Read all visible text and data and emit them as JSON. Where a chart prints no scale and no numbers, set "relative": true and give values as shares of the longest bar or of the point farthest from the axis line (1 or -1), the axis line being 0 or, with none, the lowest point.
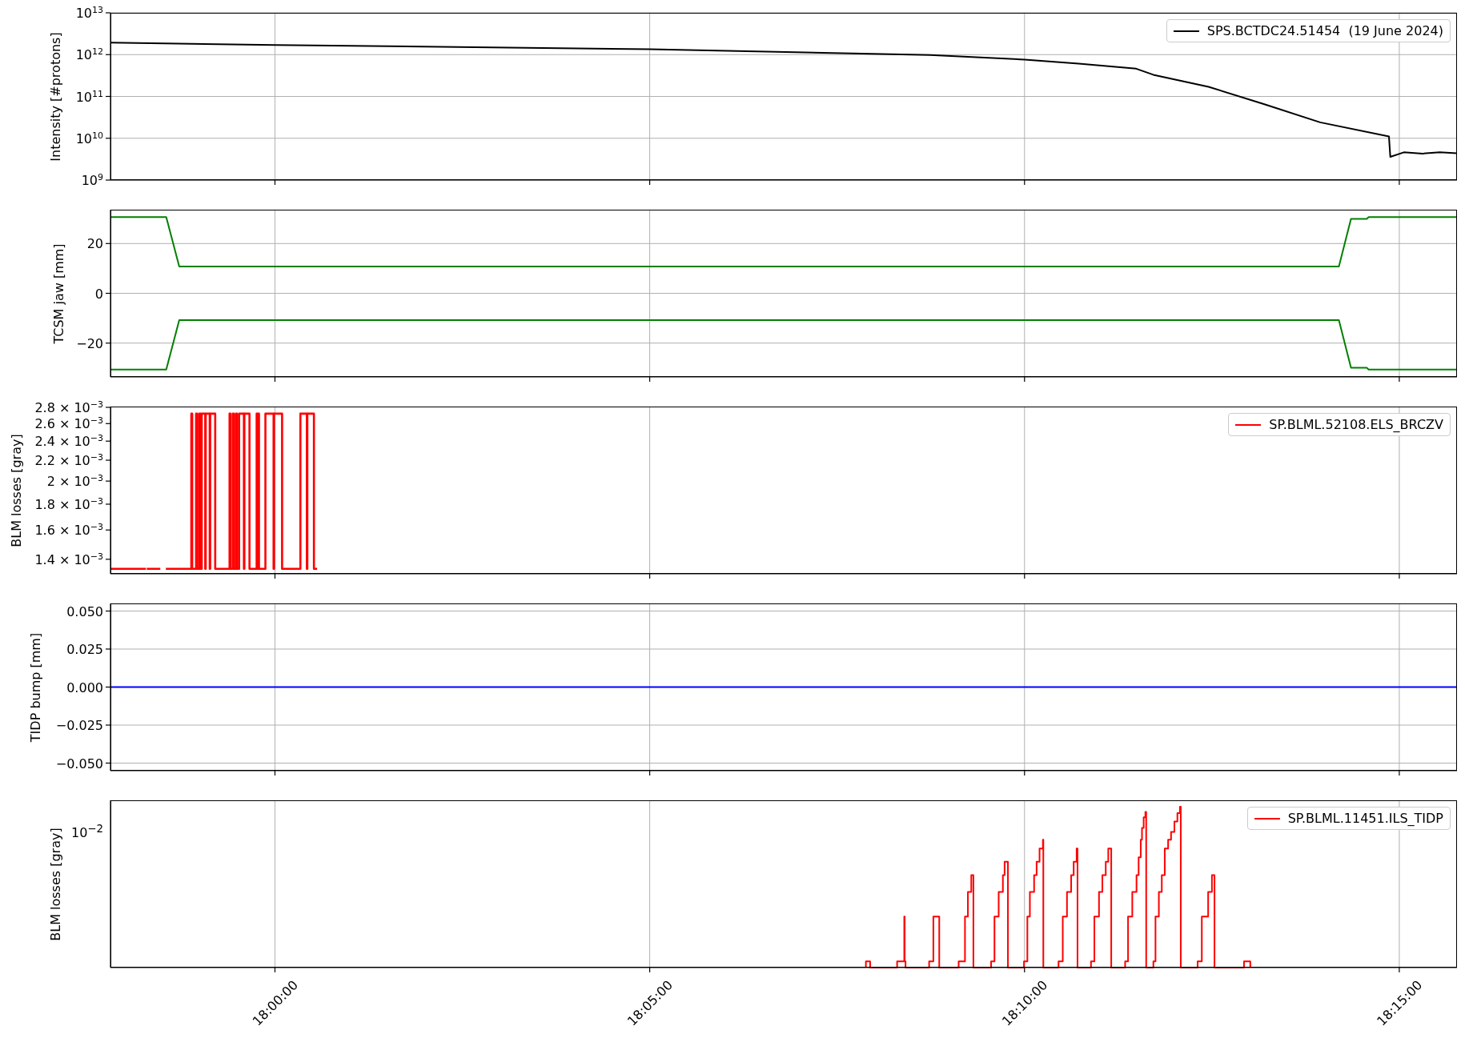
{
  "chart_data": [
    {
      "type": "line",
      "ylabel": "Intensity [#protons]",
      "log": "y",
      "grid": true,
      "legend": "top right",
      "tick_labels": "y",
      "xlim": [
        17.96343,
        18.26283
      ],
      "xticks": [
        {
          "value": 18,
          "label": null
        },
        {
          "value": 18.08333,
          "label": null
        },
        {
          "value": 18.16667,
          "label": null
        },
        {
          "value": 18.25,
          "label": null
        }
      ],
      "ylim": [
        1000000000.0,
        10000000000000.0
      ],
      "yticks": [
        {
          "value": 1000000000.0,
          "label": "10$^{9}$"
        },
        {
          "value": 10000000000.0,
          "label": "10$^{10}$"
        },
        {
          "value": 100000000000.0,
          "label": "10$^{11}$"
        },
        {
          "value": 1000000000000.0,
          "label": "10$^{12}$"
        },
        {
          "value": 10000000000000.0,
          "label": "10$^{13}$"
        }
      ],
      "series": [
        {
          "name": "SPS.BCTDC24.51454  (19 June 2024)",
          "color": "#000000",
          "x": [
            17.96343,
            18.0,
            18.0833,
            18.1457,
            18.1667,
            18.1787,
            18.1915,
            18.1953,
            18.2076,
            18.22,
            18.2324,
            18.2477,
            18.248,
            18.251,
            18.2552,
            18.259,
            18.2628
          ],
          "values": [
            1930000000000.0,
            1700000000000.0,
            1350000000000.0,
            980000000000.0,
            760000000000.0,
            610000000000.0,
            460000000000.0,
            330000000000.0,
            170000000000.0,
            65000000000.0,
            24000000000.0,
            11000000000.0,
            3600000000.0,
            4600000000.0,
            4300000000.0,
            4600000000.0,
            4400000000.0
          ]
        }
      ]
    },
    {
      "type": "line",
      "ylabel": "TCSM jaw [mm]",
      "grid": true,
      "tick_labels": "y",
      "xlim": [
        17.96343,
        18.26283
      ],
      "xticks": [
        {
          "value": 18,
          "label": null
        },
        {
          "value": 18.08333,
          "label": null
        },
        {
          "value": 18.16667,
          "label": null
        },
        {
          "value": 18.25,
          "label": null
        }
      ],
      "ylim": [
        -33.6,
        33.6
      ],
      "yticks": [
        {
          "value": -20,
          "label": "−20"
        },
        0,
        20
      ],
      "series": [
        {
          "color": "#008000",
          "x": [
            17.96343,
            17.97583,
            17.97872,
            18.23657,
            18.23926,
            18.24277,
            18.24318,
            18.26283
          ],
          "values": [
            30.6,
            30.6,
            10.8,
            10.8,
            29.9,
            29.9,
            30.6,
            30.6
          ]
        },
        {
          "color": "#008000",
          "x": [
            17.96343,
            17.97583,
            17.97872,
            18.23657,
            18.23926,
            18.24277,
            18.24318,
            18.26283
          ],
          "values": [
            -30.6,
            -30.6,
            -10.8,
            -10.8,
            -29.9,
            -29.9,
            -30.6,
            -30.6
          ]
        }
      ]
    },
    {
      "type": "step",
      "ylabel": "BLM losses [gray]",
      "log": "y",
      "grid": "x",
      "legend": "top right",
      "tick_labels": "y",
      "xlim": [
        17.96343,
        18.26283
      ],
      "xticks": [
        {
          "value": 18,
          "label": null
        },
        {
          "value": 18.08333,
          "label": null
        },
        {
          "value": 18.16667,
          "label": null
        },
        {
          "value": 18.25,
          "label": null
        }
      ],
      "ylim": [
        0.00131,
        0.00281
      ],
      "yticks": [
        {
          "value": 0.0014,
          "label": "1.4 × 10$^{−3}$"
        },
        {
          "value": 0.0016,
          "label": "1.6 × 10$^{−3}$"
        },
        {
          "value": 0.0018,
          "label": "1.8 × 10$^{−3}$"
        },
        {
          "value": 0.002,
          "label": "2 × 10$^{−3}$"
        },
        {
          "value": 0.0022,
          "label": "2.2 × 10$^{−3}$"
        },
        {
          "value": 0.0024,
          "label": "2.4 × 10$^{−3}$"
        },
        {
          "value": 0.0026,
          "label": "2.6 × 10$^{−3}$"
        },
        {
          "value": 0.0028,
          "label": "2.8 × 10$^{−3}$"
        }
      ],
      "series": [
        {
          "name": "SP.BLML.52108.ELS_BRCZV",
          "color": "#ff0000",
          "x": [
            17.96353,
            17.97132,
            17.9714,
            17.9715,
            17.97451,
            17.975,
            17.97575,
            17.98141,
            17.98141,
            17.9816,
            17.98247,
            17.9827,
            17.98318,
            17.9834,
            17.98371,
            17.9845,
            17.9846,
            17.9855,
            17.9856,
            17.98672,
            17.98991,
            17.9901,
            17.99062,
            17.99085,
            17.99133,
            17.99155,
            17.99203,
            17.9931,
            17.9932,
            17.99434,
            17.99593,
            17.9961,
            17.99628,
            17.99645,
            17.99788,
            17.9997,
            17.9998,
            18.00159,
            18.00566,
            18.0071,
            18.0072,
            18.00867,
            18.00938
          ],
          "values": [
            0.00134,
            0.00134,
            null,
            0.00134,
            0.00134,
            null,
            0.00134,
            0.00134,
            0.00272,
            0.00134,
            0.00272,
            0.00134,
            0.00272,
            0.00134,
            0.00272,
            0.00134,
            0.00272,
            0.00134,
            0.00272,
            0.00134,
            0.00272,
            0.00134,
            0.00272,
            0.00134,
            0.00272,
            0.00134,
            0.00272,
            0.00134,
            0.00272,
            0.00134,
            0.00272,
            0.00134,
            0.00272,
            0.00134,
            0.00272,
            0.00134,
            0.00272,
            0.00134,
            0.00272,
            0.00134,
            0.00272,
            0.00134,
            0.00134
          ]
        }
      ]
    },
    {
      "type": "line",
      "ylabel": "TIDP bump [mm]",
      "grid": true,
      "tick_labels": "y",
      "xlim": [
        17.96343,
        18.26283
      ],
      "xticks": [
        {
          "value": 18,
          "label": null
        },
        {
          "value": 18.08333,
          "label": null
        },
        {
          "value": 18.16667,
          "label": null
        },
        {
          "value": 18.25,
          "label": null
        }
      ],
      "ylim": [
        -0.055,
        0.055
      ],
      "yticks": [
        {
          "value": -0.05,
          "label": "−0.050"
        },
        {
          "value": -0.025,
          "label": "−0.025"
        },
        {
          "value": 0,
          "label": "0.000"
        },
        {
          "value": 0.025,
          "label": "0.025"
        },
        {
          "value": 0.05,
          "label": "0.050"
        }
      ],
      "series": [
        {
          "color": "#0000ff",
          "x": [
            17.96343,
            18.26283
          ],
          "values": [
            0,
            0
          ]
        }
      ]
    },
    {
      "type": "line",
      "ylabel": "BLM losses [gray]",
      "relative": true,
      "annotations": [
        "10$^{−2}$"
      ],
      "grid": "x",
      "legend": "top right",
      "xlim": [
        17.96343,
        18.26283
      ],
      "xticks": [
        {
          "value": 18,
          "label": "18:00:00"
        },
        {
          "value": 18.08333,
          "label": "18:05:00"
        },
        {
          "value": 18.16667,
          "label": "18:10:00"
        },
        {
          "value": 18.25,
          "label": "18:15:00"
        }
      ],
      "series": [
        {
          "name": "SP.BLML.11451.ILS_TIDP",
          "color": "#ff0000",
          "x": [
            18.1314,
            18.1314,
            18.13234,
            18.13234,
            18.13834,
            18.13834,
            18.13993,
            18.13993,
            18.14002,
            18.14002,
            18.14021,
            18.14021,
            18.14546,
            18.14546,
            18.1464,
            18.1464,
            18.14771,
            18.14771,
            18.15202,
            18.15202,
            18.15343,
            18.15343,
            18.15408,
            18.15408,
            18.15483,
            18.15483,
            18.1553,
            18.1553,
            18.15924,
            18.15924,
            18.15999,
            18.15999,
            18.16092,
            18.16092,
            18.16186,
            18.16186,
            18.16224,
            18.16224,
            18.16298,
            18.16298,
            18.16655,
            18.16655,
            18.1673,
            18.1673,
            18.16786,
            18.16786,
            18.1688,
            18.1688,
            18.16936,
            18.16936,
            18.17001,
            18.17001,
            18.17076,
            18.17076,
            18.17085,
            18.17085,
            18.17423,
            18.17423,
            18.17517,
            18.17517,
            18.17611,
            18.17611,
            18.17704,
            18.17704,
            18.1776,
            18.1776,
            18.17826,
            18.17826,
            18.17845,
            18.17845,
            18.18145,
            18.18145,
            18.1822,
            18.1822,
            18.18323,
            18.18323,
            18.18398,
            18.18398,
            18.18473,
            18.18473,
            18.18529,
            18.18529,
            18.18595,
            18.18595,
            18.18904,
            18.18904,
            18.18969,
            18.18969,
            18.19063,
            18.19063,
            18.19157,
            18.19157,
            18.19204,
            18.19204,
            18.19251,
            18.19251,
            18.19279,
            18.19279,
            18.19316,
            18.19316,
            18.19354,
            18.19354,
            18.19372,
            18.19372,
            18.19532,
            18.19532,
            18.19579,
            18.19579,
            18.19654,
            18.19654,
            18.19719,
            18.19719,
            18.19785,
            18.19785,
            18.1986,
            18.1986,
            18.19925,
            18.19925,
            18.2,
            18.2,
            18.20066,
            18.20066,
            18.20122,
            18.20122,
            18.20141,
            18.20141,
            18.20516,
            18.20516,
            18.20609,
            18.20609,
            18.2075,
            18.2075,
            18.20834,
            18.20834,
            18.20891,
            18.20891,
            18.21547,
            18.21547,
            18.21687,
            18.21687
          ],
          "values": [
            0,
            0.039,
            0.039,
            0,
            0,
            0.039,
            0.039,
            0.317,
            0.317,
            0.039,
            0.039,
            0,
            0,
            0.039,
            0.039,
            0.317,
            0.317,
            0,
            0,
            0.039,
            0.039,
            0.317,
            0.317,
            0.47,
            0.47,
            0.575,
            0.575,
            0,
            0,
            0.039,
            0.039,
            0.317,
            0.317,
            0.47,
            0.47,
            0.575,
            0.575,
            0.658,
            0.658,
            0,
            0,
            0.039,
            0.039,
            0.317,
            0.317,
            0.47,
            0.47,
            0.575,
            0.575,
            0.658,
            0.658,
            0.74,
            0.74,
            0.795,
            0.795,
            0,
            0,
            0.039,
            0.039,
            0.317,
            0.317,
            0.47,
            0.47,
            0.575,
            0.575,
            0.658,
            0.658,
            0.74,
            0.74,
            0,
            0,
            0.039,
            0.039,
            0.317,
            0.317,
            0.47,
            0.47,
            0.575,
            0.575,
            0.658,
            0.658,
            0.74,
            0.74,
            0,
            0,
            0.039,
            0.039,
            0.317,
            0.317,
            0.47,
            0.47,
            0.575,
            0.575,
            0.685,
            0.685,
            0.795,
            0.795,
            0.868,
            0.868,
            0.934,
            0.934,
            0.968,
            0.968,
            0,
            0,
            0.039,
            0.039,
            0.317,
            0.317,
            0.47,
            0.47,
            0.575,
            0.575,
            0.74,
            0.74,
            0.795,
            0.795,
            0.844,
            0.844,
            0.908,
            0.908,
            0.961,
            0.961,
            1,
            1,
            0,
            0,
            0.039,
            0.039,
            0.317,
            0.317,
            0.47,
            0.47,
            0.575,
            0.575,
            0,
            0,
            0.039,
            0.039,
            0
          ]
        }
      ]
    }
  ]
}
